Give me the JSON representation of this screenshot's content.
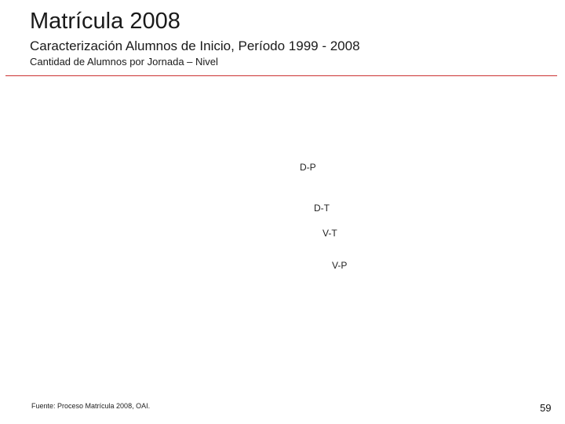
{
  "header": {
    "title": "Matrícula 2008",
    "subtitle": "Caracterización Alumnos de Inicio, Período 1999 - 2008",
    "subsubtitle": "Cantidad de Alumnos por Jornada – Nivel"
  },
  "chart_data": {
    "type": "line",
    "title": "",
    "series_labels": [
      "D-P",
      "D-T",
      "V-T",
      "V-P"
    ]
  },
  "footer": {
    "source": "Fuente: Proceso Matrícula 2008, OAI.",
    "page_number": "59"
  },
  "colors": {
    "rule": "#cc3333"
  }
}
